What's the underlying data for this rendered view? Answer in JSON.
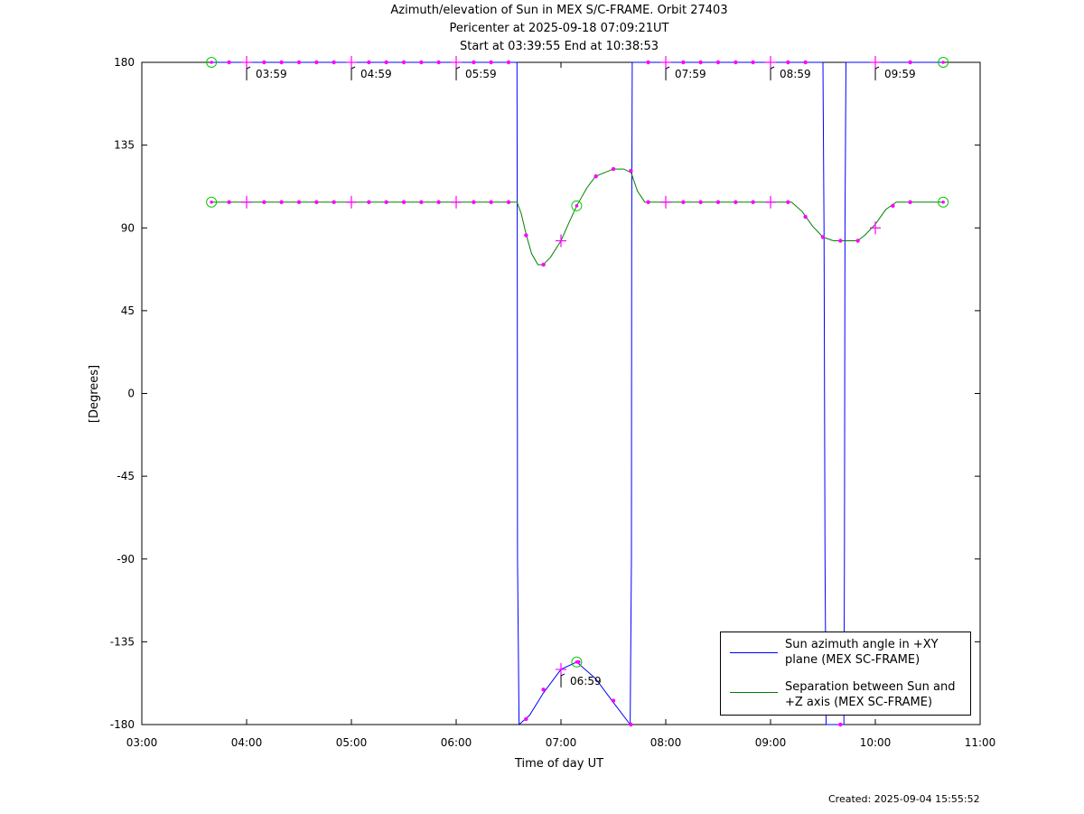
{
  "title": {
    "line1": "Azimuth/elevation of Sun in MEX S/C-FRAME.  Orbit 27403",
    "line2": "Pericenter at 2025-09-18 07:09:21UT",
    "line3": "Start at 03:39:55 End at 10:38:53"
  },
  "footer": {
    "created": "Created: 2025-09-04 15:55:52"
  },
  "legend": {
    "azimuth": "Sun azimuth angle in +XY plane (MEX SC-FRAME)",
    "separation": "Separation between Sun and +Z axis (MEX SC-FRAME)"
  },
  "chart_data": {
    "type": "line",
    "title": "Azimuth/elevation of Sun in MEX S/C-FRAME.  Orbit 27403",
    "xlabel": "Time of day UT",
    "ylabel": "[Degrees]",
    "xlim": [
      3.0,
      11.0
    ],
    "ylim": [
      -180,
      180
    ],
    "x_ticks": [
      "03:00",
      "04:00",
      "05:00",
      "06:00",
      "07:00",
      "08:00",
      "09:00",
      "10:00",
      "11:00"
    ],
    "y_ticks": [
      180,
      135,
      90,
      45,
      0,
      -45,
      -90,
      -135,
      -180
    ],
    "grid": false,
    "legend_position": "bottom-right",
    "colors": {
      "azimuth": "#0000ff",
      "separation": "#008000",
      "markers": "#ff00ff",
      "endpoints": "#00cc00"
    },
    "time_labels": [
      {
        "label": "03:59",
        "x": 3.983,
        "y": 180
      },
      {
        "label": "04:59",
        "x": 4.983,
        "y": 180
      },
      {
        "label": "05:59",
        "x": 5.983,
        "y": 180
      },
      {
        "label": "06:59",
        "x": 6.983,
        "y": -150
      },
      {
        "label": "07:59",
        "x": 7.983,
        "y": 180
      },
      {
        "label": "08:59",
        "x": 8.983,
        "y": 180
      },
      {
        "label": "09:59",
        "x": 9.983,
        "y": 180
      }
    ],
    "series": [
      {
        "name": "Sun azimuth angle in +XY plane (MEX SC-FRAME)",
        "segments": [
          [
            [
              3.665,
              180
            ],
            [
              6.58,
              180
            ]
          ],
          [
            [
              6.58,
              180
            ],
            [
              6.583,
              90
            ],
            [
              6.585,
              -90
            ],
            [
              6.6,
              -180
            ]
          ],
          [
            [
              6.6,
              -180
            ],
            [
              6.7,
              -175
            ],
            [
              6.83,
              -163
            ],
            [
              7.0,
              -150
            ],
            [
              7.15,
              -146
            ],
            [
              7.33,
              -155
            ],
            [
              7.5,
              -168
            ],
            [
              7.66,
              -180
            ]
          ],
          [
            [
              7.66,
              -180
            ],
            [
              7.672,
              -90
            ],
            [
              7.675,
              90
            ],
            [
              7.68,
              180
            ]
          ],
          [
            [
              7.68,
              180
            ],
            [
              9.5,
              180
            ]
          ],
          [
            [
              9.5,
              180
            ],
            [
              9.51,
              90
            ],
            [
              9.52,
              -90
            ],
            [
              9.53,
              -180
            ]
          ],
          [
            [
              9.53,
              -180
            ],
            [
              9.7,
              -180
            ]
          ],
          [
            [
              9.7,
              -180
            ],
            [
              9.705,
              -90
            ],
            [
              9.71,
              90
            ],
            [
              9.72,
              180
            ]
          ],
          [
            [
              9.72,
              180
            ],
            [
              10.648,
              180
            ]
          ]
        ]
      },
      {
        "name": "Separation between Sun and +Z axis (MEX SC-FRAME)",
        "points": [
          [
            3.665,
            104
          ],
          [
            6.58,
            104
          ],
          [
            6.62,
            98
          ],
          [
            6.67,
            86
          ],
          [
            6.72,
            76
          ],
          [
            6.78,
            70
          ],
          [
            6.83,
            70
          ],
          [
            6.9,
            74
          ],
          [
            7.0,
            83
          ],
          [
            7.07,
            92
          ],
          [
            7.15,
            102
          ],
          [
            7.25,
            112
          ],
          [
            7.33,
            118
          ],
          [
            7.5,
            122
          ],
          [
            7.6,
            122
          ],
          [
            7.67,
            120
          ],
          [
            7.73,
            110
          ],
          [
            7.8,
            104
          ],
          [
            9.2,
            104
          ],
          [
            9.3,
            99
          ],
          [
            9.4,
            91
          ],
          [
            9.5,
            85
          ],
          [
            9.6,
            83
          ],
          [
            9.83,
            83
          ],
          [
            9.9,
            86
          ],
          [
            10.0,
            92
          ],
          [
            10.1,
            100
          ],
          [
            10.2,
            104
          ],
          [
            10.648,
            104
          ]
        ]
      }
    ],
    "markers": {
      "dots": [
        [
          3.833,
          180
        ],
        [
          4.167,
          180
        ],
        [
          4.333,
          180
        ],
        [
          4.5,
          180
        ],
        [
          4.667,
          180
        ],
        [
          4.833,
          180
        ],
        [
          5.167,
          180
        ],
        [
          5.333,
          180
        ],
        [
          5.5,
          180
        ],
        [
          5.667,
          180
        ],
        [
          5.833,
          180
        ],
        [
          6.167,
          180
        ],
        [
          6.333,
          180
        ],
        [
          6.5,
          180
        ],
        [
          7.833,
          180
        ],
        [
          8.167,
          180
        ],
        [
          8.333,
          180
        ],
        [
          8.5,
          180
        ],
        [
          8.667,
          180
        ],
        [
          8.833,
          180
        ],
        [
          9.167,
          180
        ],
        [
          9.333,
          180
        ],
        [
          10.333,
          180
        ],
        [
          3.833,
          104
        ],
        [
          4.167,
          104
        ],
        [
          4.333,
          104
        ],
        [
          4.5,
          104
        ],
        [
          4.667,
          104
        ],
        [
          4.833,
          104
        ],
        [
          5.167,
          104
        ],
        [
          5.333,
          104
        ],
        [
          5.5,
          104
        ],
        [
          5.667,
          104
        ],
        [
          5.833,
          104
        ],
        [
          6.167,
          104
        ],
        [
          6.333,
          104
        ],
        [
          6.5,
          104
        ],
        [
          6.667,
          86
        ],
        [
          6.833,
          70
        ],
        [
          7.333,
          118
        ],
        [
          7.5,
          122
        ],
        [
          7.667,
          121
        ],
        [
          7.833,
          104
        ],
        [
          8.167,
          104
        ],
        [
          8.333,
          104
        ],
        [
          8.5,
          104
        ],
        [
          8.667,
          104
        ],
        [
          8.833,
          104
        ],
        [
          9.167,
          104
        ],
        [
          9.333,
          96
        ],
        [
          9.5,
          85
        ],
        [
          9.667,
          83
        ],
        [
          9.833,
          83
        ],
        [
          10.167,
          102
        ],
        [
          10.333,
          104
        ],
        [
          6.667,
          -177
        ],
        [
          6.833,
          -161
        ],
        [
          7.167,
          -146
        ],
        [
          7.5,
          -167
        ],
        [
          7.667,
          -180
        ],
        [
          9.667,
          -180
        ]
      ],
      "crosses": [
        [
          4.0,
          180
        ],
        [
          5.0,
          180
        ],
        [
          6.0,
          180
        ],
        [
          8.0,
          180
        ],
        [
          9.0,
          180
        ],
        [
          10.0,
          180
        ],
        [
          4.0,
          104
        ],
        [
          5.0,
          104
        ],
        [
          6.0,
          104
        ],
        [
          7.0,
          83
        ],
        [
          8.0,
          104
        ],
        [
          9.0,
          104
        ],
        [
          10.0,
          90
        ],
        [
          7.0,
          -150
        ]
      ],
      "circles": [
        [
          3.665,
          180
        ],
        [
          10.648,
          180
        ],
        [
          3.665,
          104
        ],
        [
          10.648,
          104
        ],
        [
          7.15,
          102
        ],
        [
          7.15,
          -146
        ]
      ]
    }
  }
}
